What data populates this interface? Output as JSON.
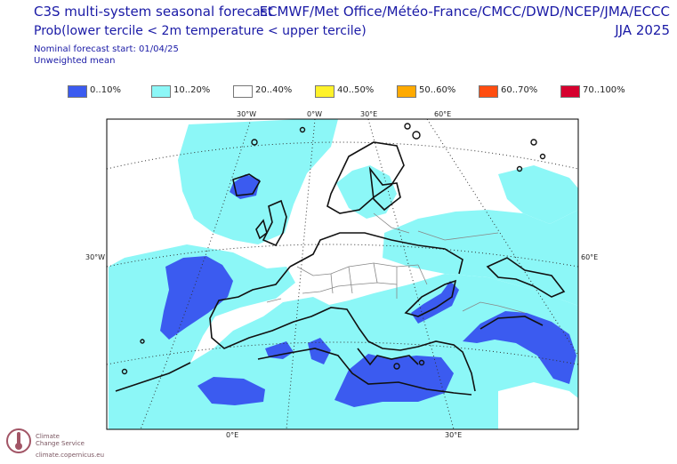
{
  "header": {
    "title": "C3S multi-system seasonal forecast",
    "subtitle": "Prob(lower tercile < 2m temperature < upper tercile)",
    "forecast_start": "Nominal forecast start: 01/04/25",
    "weighting": "Unweighted mean",
    "centres": "ECMWF/Met Office/Météo-France/CMCC/DWD/NCEP/JMA/ECCC",
    "season": "JJA 2025"
  },
  "legend": [
    {
      "label": "0..10%",
      "color": "#3b5bf0"
    },
    {
      "label": "10..20%",
      "color": "#8cf7f7"
    },
    {
      "label": "20..40%",
      "color": "#ffffff"
    },
    {
      "label": "40..50%",
      "color": "#fff22a"
    },
    {
      "label": "50..60%",
      "color": "#ffaa00"
    },
    {
      "label": "60..70%",
      "color": "#ff4d10"
    },
    {
      "label": "70..100%",
      "color": "#d6002e"
    }
  ],
  "graticule_labels": {
    "top": [
      "30°W",
      "0°W",
      "30°E",
      "60°E"
    ],
    "left": "30°W",
    "right": "60°E",
    "bottom": [
      "0°E",
      "30°E"
    ]
  },
  "logo": {
    "line1": "Climate",
    "line2": "Change Service",
    "url": "climate.copernicus.eu"
  }
}
